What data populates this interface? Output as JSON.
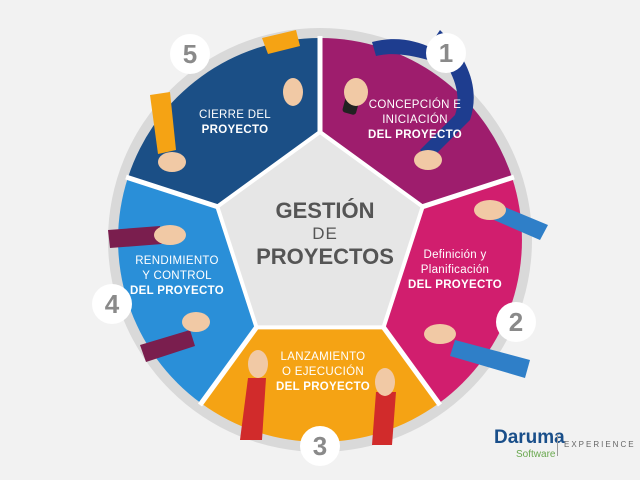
{
  "center": {
    "line1": "GESTIÓN",
    "line2": "DE",
    "line3": "PROYECTOS"
  },
  "phases": [
    {
      "number": "1",
      "line1": "CONCEPCIÓN E",
      "line2": "INICIACIÓN",
      "line3": "DEL PROYECTO",
      "color": "#9e1d6d"
    },
    {
      "number": "2",
      "line1": "Definición y",
      "line2": "Planificación",
      "line3": "DEL PROYECTO",
      "color": "#d11e6e"
    },
    {
      "number": "3",
      "line1": "LANZAMIENTO",
      "line2": "O EJECUCIÓN",
      "line3": "DEL PROYECTO",
      "color": "#f5a314"
    },
    {
      "number": "4",
      "line1": "RENDIMIENTO",
      "line2": "Y CONTROL",
      "line3": "DEL PROYECTO",
      "color": "#2a8fd8"
    },
    {
      "number": "5",
      "line1": "CIERRE DEL",
      "line2": "",
      "line3": "PROYECTO",
      "color": "#1b4f86"
    }
  ],
  "logo": {
    "name": "Daruma",
    "sub": "Software",
    "tagline": "EXPERIENCE"
  },
  "colors": {
    "ring": "#d9d9d9",
    "center": "#e6e6e6",
    "number_text": "#8a8a8a",
    "background": "#f2f2f2"
  }
}
